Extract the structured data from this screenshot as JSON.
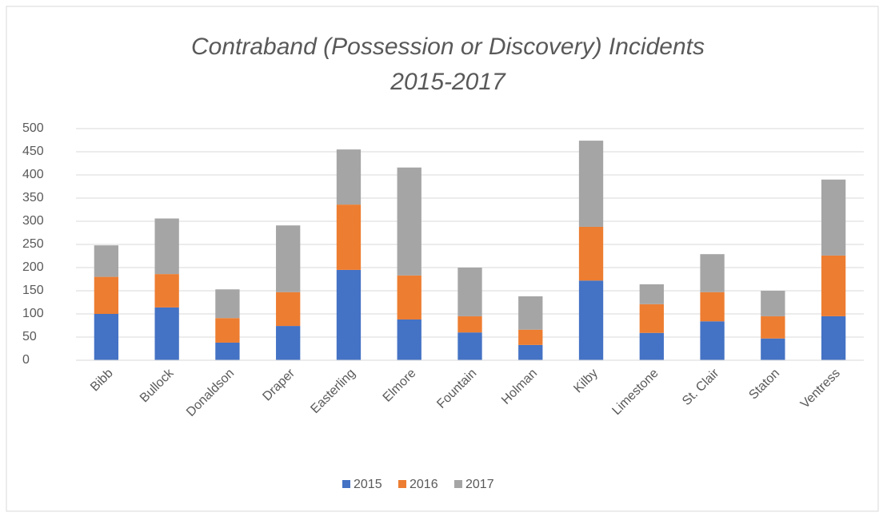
{
  "chart_data": {
    "type": "stacked_bar",
    "title": [
      "Contraband (Possession or Discovery) Incidents",
      "2015-2017"
    ],
    "categories": [
      "Bibb",
      "Bullock",
      "Donaldson",
      "Draper",
      "Easterling",
      "Elmore",
      "Fountain",
      "Holman",
      "Kilby",
      "Limestone",
      "St. Clair",
      "Staton",
      "Ventress"
    ],
    "series": [
      {
        "name": "2015",
        "color": "#4472c4",
        "values": [
          100,
          114,
          38,
          74,
          195,
          88,
          60,
          33,
          172,
          59,
          84,
          47,
          95
        ]
      },
      {
        "name": "2016",
        "color": "#ed7d31",
        "values": [
          80,
          72,
          53,
          73,
          141,
          95,
          35,
          33,
          116,
          62,
          63,
          48,
          131
        ]
      },
      {
        "name": "2017",
        "color": "#a5a5a5",
        "values": [
          68,
          120,
          62,
          144,
          119,
          233,
          105,
          72,
          186,
          43,
          82,
          55,
          164
        ]
      }
    ],
    "ylim": [
      0,
      500
    ],
    "yticks": [
      0,
      50,
      100,
      150,
      200,
      250,
      300,
      350,
      400,
      450,
      500
    ],
    "grid": true,
    "legend": "bottom"
  }
}
